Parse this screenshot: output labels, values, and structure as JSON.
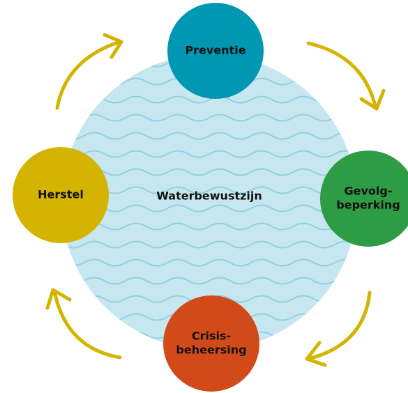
{
  "center": {
    "label": "Waterbewustzijn"
  },
  "nodes": [
    {
      "lines": [
        "Preventie"
      ],
      "color": "#0097b2"
    },
    {
      "lines": [
        "Gevolg-",
        "beperking"
      ],
      "color": "#2e9b45"
    },
    {
      "lines": [
        "Crisis-",
        "beheersing"
      ],
      "color": "#d24a1a"
    },
    {
      "lines": [
        "Herstel"
      ],
      "color": "#d4b400"
    }
  ]
}
